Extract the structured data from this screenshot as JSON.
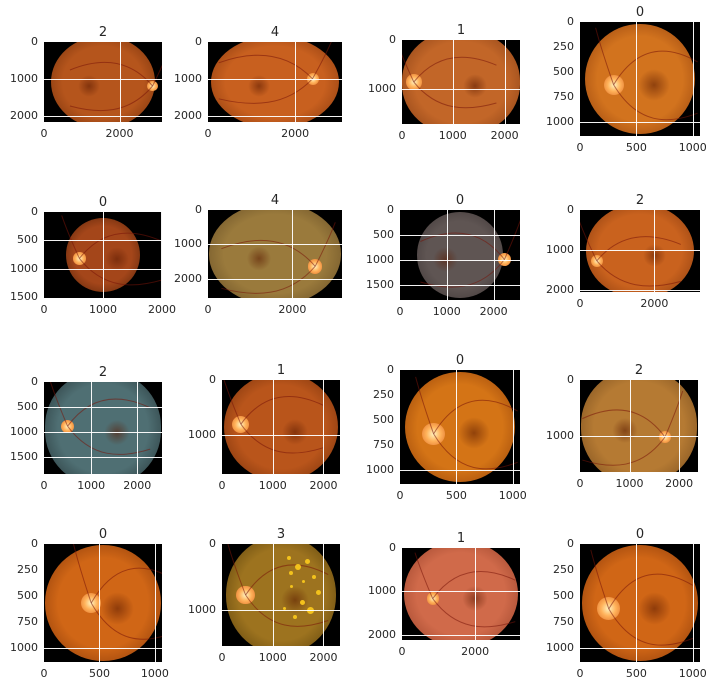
{
  "panels": [
    {
      "title": "2",
      "x_ticks": [
        "0",
        "2000"
      ],
      "y_ticks": [
        "0",
        "1000",
        "2000"
      ]
    },
    {
      "title": "4",
      "x_ticks": [
        "0",
        "2000"
      ],
      "y_ticks": [
        "0",
        "1000",
        "2000"
      ]
    },
    {
      "title": "1",
      "x_ticks": [
        "0",
        "1000",
        "2000"
      ],
      "y_ticks": [
        "0",
        "1000"
      ]
    },
    {
      "title": "0",
      "x_ticks": [
        "0",
        "500",
        "1000"
      ],
      "y_ticks": [
        "0",
        "250",
        "500",
        "750",
        "1000"
      ]
    },
    {
      "title": "0",
      "x_ticks": [
        "0",
        "1000",
        "2000"
      ],
      "y_ticks": [
        "0",
        "500",
        "1000",
        "1500"
      ]
    },
    {
      "title": "4",
      "x_ticks": [
        "0",
        "2000"
      ],
      "y_ticks": [
        "0",
        "1000",
        "2000"
      ]
    },
    {
      "title": "0",
      "x_ticks": [
        "0",
        "1000",
        "2000"
      ],
      "y_ticks": [
        "0",
        "500",
        "1000",
        "1500"
      ]
    },
    {
      "title": "2",
      "x_ticks": [
        "0",
        "2000"
      ],
      "y_ticks": [
        "0",
        "1000",
        "2000"
      ]
    },
    {
      "title": "2",
      "x_ticks": [
        "0",
        "1000",
        "2000"
      ],
      "y_ticks": [
        "0",
        "500",
        "1000",
        "1500"
      ]
    },
    {
      "title": "1",
      "x_ticks": [
        "0",
        "1000",
        "2000"
      ],
      "y_ticks": [
        "0",
        "1000"
      ]
    },
    {
      "title": "0",
      "x_ticks": [
        "0",
        "500",
        "1000"
      ],
      "y_ticks": [
        "0",
        "250",
        "500",
        "750",
        "1000"
      ]
    },
    {
      "title": "2",
      "x_ticks": [
        "0",
        "1000",
        "2000"
      ],
      "y_ticks": [
        "0",
        "1000"
      ]
    },
    {
      "title": "0",
      "x_ticks": [
        "0",
        "500",
        "1000"
      ],
      "y_ticks": [
        "0",
        "250",
        "500",
        "750",
        "1000"
      ]
    },
    {
      "title": "3",
      "x_ticks": [
        "0",
        "1000",
        "2000"
      ],
      "y_ticks": [
        "0",
        "1000"
      ]
    },
    {
      "title": "1",
      "x_ticks": [
        "0",
        "2000"
      ],
      "y_ticks": [
        "0",
        "1000",
        "2000"
      ]
    },
    {
      "title": "0",
      "x_ticks": [
        "0",
        "500",
        "1000"
      ],
      "y_ticks": [
        "0",
        "250",
        "500",
        "750",
        "1000"
      ]
    }
  ]
}
